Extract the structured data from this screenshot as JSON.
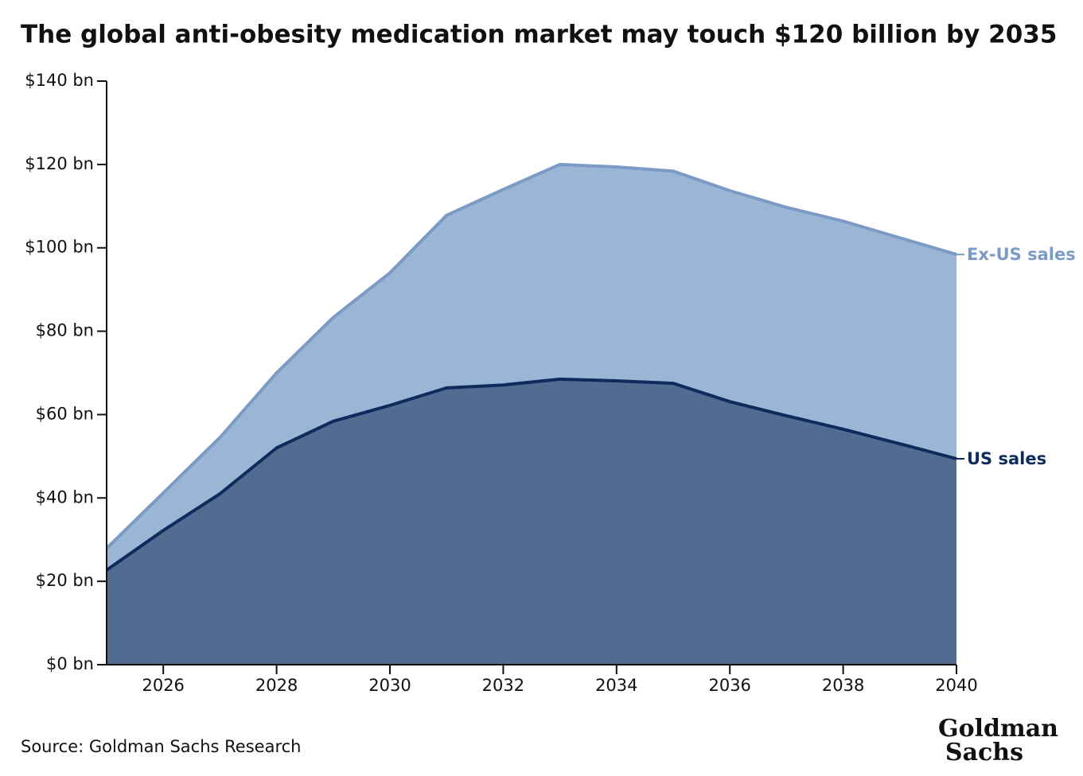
{
  "chart_data": {
    "type": "stacked-area",
    "title": "The global anti-obesity medication market may touch $120 billion by 2035",
    "x": [
      2025,
      2026,
      2027,
      2028,
      2029,
      2030,
      2031,
      2032,
      2033,
      2034,
      2035,
      2036,
      2037,
      2038,
      2039,
      2040
    ],
    "series": [
      {
        "name": "US sales",
        "color": "#0d2b5c",
        "fill": "#516c90",
        "values": [
          22.7,
          32.2,
          41,
          52,
          58.4,
          62.2,
          66.4,
          67.1,
          68.5,
          68.1,
          67.5,
          63.1,
          59.7,
          56.5,
          53,
          49.4
        ]
      },
      {
        "name": "Ex-US sales",
        "color": "#7b9ac6",
        "fill": "#9bb6d5",
        "values": [
          5.2,
          9,
          13.5,
          18,
          24.9,
          31.8,
          41.4,
          46.9,
          51.5,
          51.3,
          50.9,
          50.6,
          50,
          49.9,
          49.4,
          49
        ]
      }
    ],
    "xlim": [
      2025,
      2040
    ],
    "xticks": [
      2026,
      2028,
      2030,
      2032,
      2034,
      2036,
      2038,
      2040
    ],
    "ylim": [
      0,
      140
    ],
    "yticks": [
      {
        "value": 0,
        "label": "$0 bn"
      },
      {
        "value": 20,
        "label": "$20 bn"
      },
      {
        "value": 40,
        "label": "$40 bn"
      },
      {
        "value": 60,
        "label": "$60 bn"
      },
      {
        "value": 80,
        "label": "$80 bn"
      },
      {
        "value": 100,
        "label": "$100 bn"
      },
      {
        "value": 120,
        "label": "$120 bn"
      },
      {
        "value": 140,
        "label": "$140 bn"
      }
    ],
    "source": "Source: Goldman Sachs Research",
    "logo": [
      "Goldman",
      "Sachs"
    ]
  }
}
